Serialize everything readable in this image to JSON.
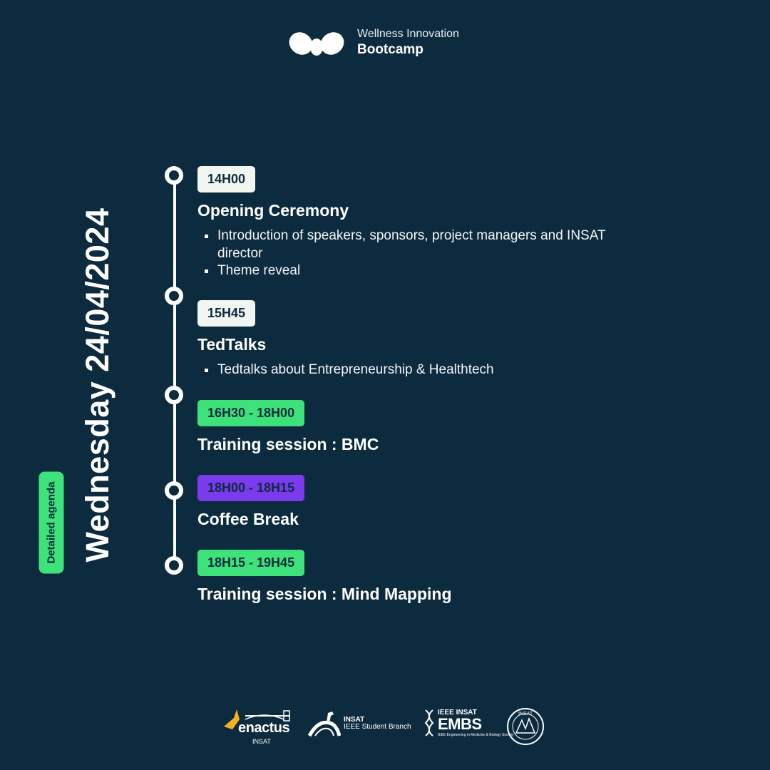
{
  "header": {
    "line1": "Wellness Innovation",
    "line2": "Bootcamp",
    "logo_icon": "wellness-logo-icon"
  },
  "sidebar": {
    "date": "Wednesday 24/04/2024",
    "label": "Detailed agenda"
  },
  "colors": {
    "background": "#0d2b3e",
    "accent_green": "#3ee27a",
    "accent_purple": "#7c3aed",
    "pill_white": "#f2f6f1"
  },
  "agenda": [
    {
      "time": "14H00",
      "title": "Opening Ceremony",
      "bullets": [
        "Introduction of speakers, sponsors, project managers and INSAT director",
        "Theme reveal"
      ]
    },
    {
      "time": "15H45",
      "title": "TedTalks",
      "bullets": [
        "Tedtalks about Entrepreneurship & Healthtech"
      ]
    },
    {
      "time": "16H30 - 18H00",
      "title": "Training session : BMC"
    },
    {
      "time": "18H00 - 18H15",
      "title": "Coffee Break"
    },
    {
      "time": "18H15 - 19H45",
      "title": "Training session : Mind Mapping"
    }
  ],
  "footer": {
    "enactus": {
      "name": "enactus",
      "sub": "INSAT"
    },
    "ieee_student_branch": {
      "line1": "INSAT",
      "line2": "IEEE Student Branch"
    },
    "ieee_embs": {
      "line1": "IEEE INSAT",
      "line2": "EMBS",
      "line3": "IEEE Engineering in Medicine & Biology Society"
    },
    "insat_seal": {
      "text": "INSAT"
    }
  }
}
